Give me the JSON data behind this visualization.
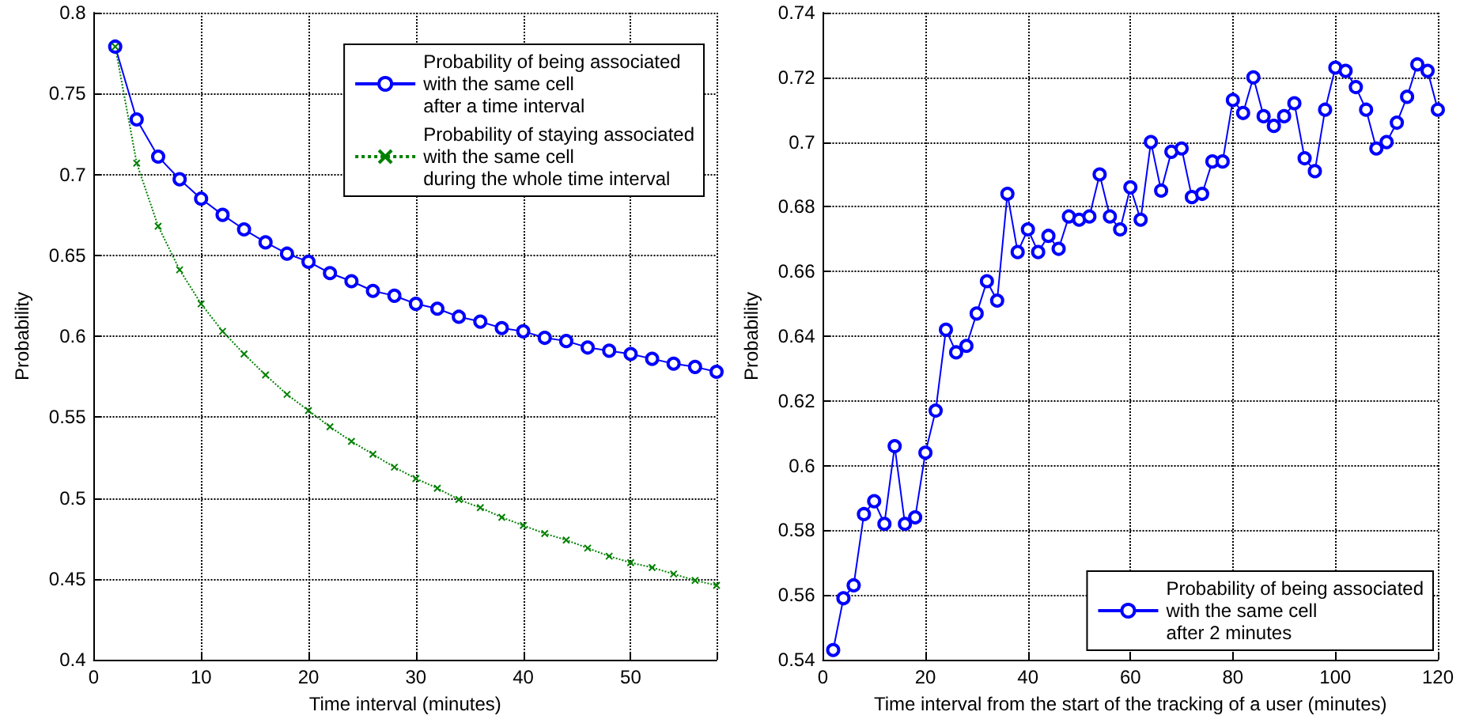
{
  "chart_data": [
    {
      "type": "line",
      "xlabel": "Time interval (minutes)",
      "ylabel": "Probability",
      "x": [
        2,
        4,
        6,
        8,
        10,
        12,
        14,
        16,
        18,
        20,
        22,
        24,
        26,
        28,
        30,
        32,
        34,
        36,
        38,
        40,
        42,
        44,
        46,
        48,
        50,
        52,
        54,
        56,
        58
      ],
      "series": [
        {
          "name": "Probability of being associated\nwith the same cell\nafter a time interval",
          "color": "#0000ff",
          "marker": "circle",
          "line_style": "solid",
          "values": [
            0.779,
            0.734,
            0.711,
            0.697,
            0.685,
            0.675,
            0.666,
            0.658,
            0.651,
            0.646,
            0.639,
            0.634,
            0.628,
            0.625,
            0.62,
            0.617,
            0.612,
            0.609,
            0.605,
            0.603,
            0.599,
            0.597,
            0.593,
            0.591,
            0.589,
            0.586,
            0.583,
            0.581,
            0.578
          ]
        },
        {
          "name": "Probability of staying associated\nwith the same cell\nduring the whole time interval",
          "color": "#008000",
          "marker": "cross",
          "line_style": "dotted",
          "values": [
            0.779,
            0.707,
            0.668,
            0.641,
            0.62,
            0.603,
            0.589,
            0.576,
            0.564,
            0.554,
            0.544,
            0.535,
            0.527,
            0.519,
            0.512,
            0.506,
            0.499,
            0.494,
            0.488,
            0.483,
            0.478,
            0.474,
            0.469,
            0.464,
            0.46,
            0.457,
            0.453,
            0.449,
            0.446
          ]
        }
      ],
      "xlim": [
        0,
        58
      ],
      "xticks": [
        0,
        10,
        20,
        30,
        40,
        50
      ],
      "ylim": [
        0.4,
        0.8
      ],
      "yticks": [
        0.4,
        0.45,
        0.5,
        0.55,
        0.6,
        0.65,
        0.7,
        0.75,
        0.8
      ],
      "grid": true,
      "legend": "top right"
    },
    {
      "type": "line",
      "xlabel": "Time interval from the start of the tracking of a user (minutes)",
      "ylabel": "Probability",
      "x": [
        2,
        4,
        6,
        8,
        10,
        12,
        14,
        16,
        18,
        20,
        22,
        24,
        26,
        28,
        30,
        32,
        34,
        36,
        38,
        40,
        42,
        44,
        46,
        48,
        50,
        52,
        54,
        56,
        58,
        60,
        62,
        64,
        66,
        68,
        70,
        72,
        74,
        76,
        78,
        80,
        82,
        84,
        86,
        88,
        90,
        92,
        94,
        96,
        98,
        100,
        102,
        104,
        106,
        108,
        110,
        112,
        114,
        116,
        118,
        120
      ],
      "series": [
        {
          "name": "Probability of being associated\nwith the same cell\nafter 2 minutes",
          "color": "#0000ff",
          "marker": "circle",
          "line_style": "solid",
          "values": [
            0.543,
            0.559,
            0.563,
            0.585,
            0.589,
            0.582,
            0.606,
            0.582,
            0.584,
            0.604,
            0.617,
            0.642,
            0.635,
            0.637,
            0.647,
            0.657,
            0.651,
            0.684,
            0.666,
            0.673,
            0.666,
            0.671,
            0.667,
            0.677,
            0.676,
            0.677,
            0.69,
            0.677,
            0.673,
            0.686,
            0.676,
            0.7,
            0.685,
            0.697,
            0.698,
            0.683,
            0.684,
            0.694,
            0.694,
            0.713,
            0.709,
            0.72,
            0.708,
            0.705,
            0.708,
            0.712,
            0.695,
            0.691,
            0.71,
            0.723,
            0.722,
            0.717,
            0.71,
            0.698,
            0.7,
            0.706,
            0.714,
            0.724,
            0.722,
            0.71
          ]
        }
      ],
      "xlim": [
        0,
        120
      ],
      "xticks": [
        0,
        20,
        40,
        60,
        80,
        100,
        120
      ],
      "ylim": [
        0.54,
        0.74
      ],
      "yticks": [
        0.54,
        0.56,
        0.58,
        0.6,
        0.62,
        0.64,
        0.66,
        0.68,
        0.7,
        0.72,
        0.74
      ],
      "grid": true,
      "legend": "bottom right"
    }
  ]
}
